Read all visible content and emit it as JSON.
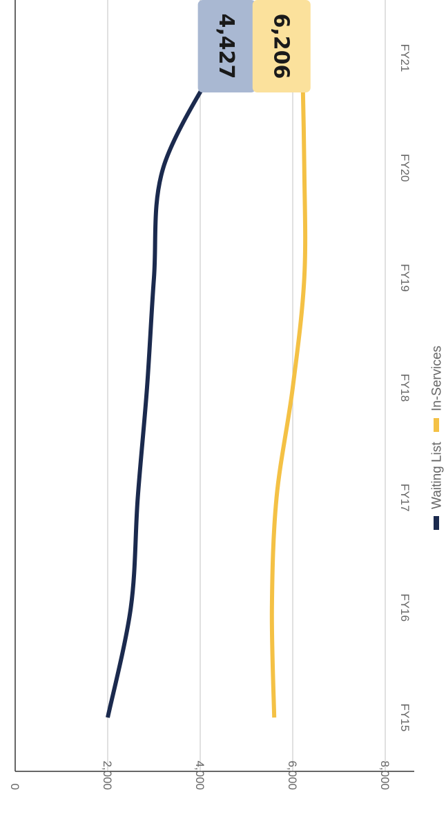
{
  "chart_data": {
    "type": "line",
    "orientation": "rotated-90-clockwise",
    "x": [
      "FY15",
      "FY16",
      "FY17",
      "FY18",
      "FY19",
      "FY20",
      "FY21"
    ],
    "ylim": [
      0,
      8000
    ],
    "yticks": [
      0,
      2000,
      4000,
      6000,
      8000
    ],
    "ytick_labels": [
      "0",
      "2,000",
      "4,000",
      "6,000",
      "8,000"
    ],
    "grid": true,
    "legend": "bottom",
    "series": [
      {
        "name": "Waiting List",
        "color": "#1b2a4e",
        "values": [
          2000,
          2500,
          2650,
          2850,
          3000,
          3200,
          4427
        ],
        "end_label": "4,427",
        "label_bg": "#a9b8d2"
      },
      {
        "name": "In-Services",
        "color": "#f4c145",
        "values": [
          5600,
          5550,
          5650,
          6000,
          6250,
          6250,
          6206
        ],
        "end_label": "6,206",
        "label_bg": "#fbe19c"
      }
    ]
  }
}
